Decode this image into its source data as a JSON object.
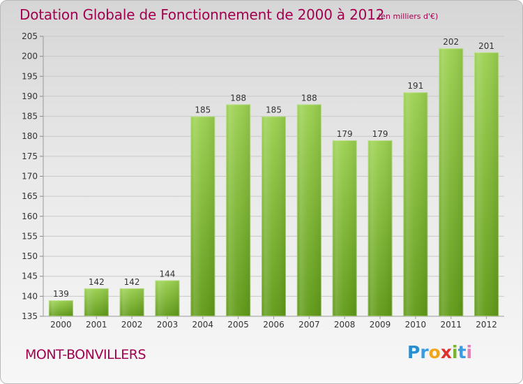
{
  "header": {
    "title": "Dotation Globale de Fonctionnement de 2000 à 2012",
    "unit": "(en milliers d'€)"
  },
  "footer": {
    "commune": "MONT-BONVILLERS",
    "logo_letters": [
      "P",
      "r",
      "o",
      "x",
      "i",
      "t",
      "i"
    ],
    "logo_colors": [
      "#2a8fd1",
      "#3a9be0",
      "#f0a51a",
      "#e0312b",
      "#78b32e",
      "#3a9be0",
      "#e07fb0"
    ]
  },
  "colors": {
    "title": "#a3004f",
    "bar_top": "#9ad04e",
    "bar_bottom": "#5f9a16",
    "grid": "#c8c8c8",
    "axis_text": "#333333"
  },
  "chart_data": {
    "type": "bar",
    "categories": [
      "2000",
      "2001",
      "2002",
      "2003",
      "2004",
      "2005",
      "2006",
      "2007",
      "2008",
      "2009",
      "2010",
      "2011",
      "2012"
    ],
    "values": [
      139,
      142,
      142,
      144,
      185,
      188,
      185,
      188,
      179,
      179,
      191,
      202,
      201
    ],
    "yticks": [
      135,
      140,
      145,
      150,
      155,
      160,
      165,
      170,
      175,
      180,
      185,
      190,
      195,
      200,
      205
    ],
    "ylim": [
      135,
      205
    ],
    "grid": true,
    "xlabel": "",
    "ylabel": ""
  }
}
